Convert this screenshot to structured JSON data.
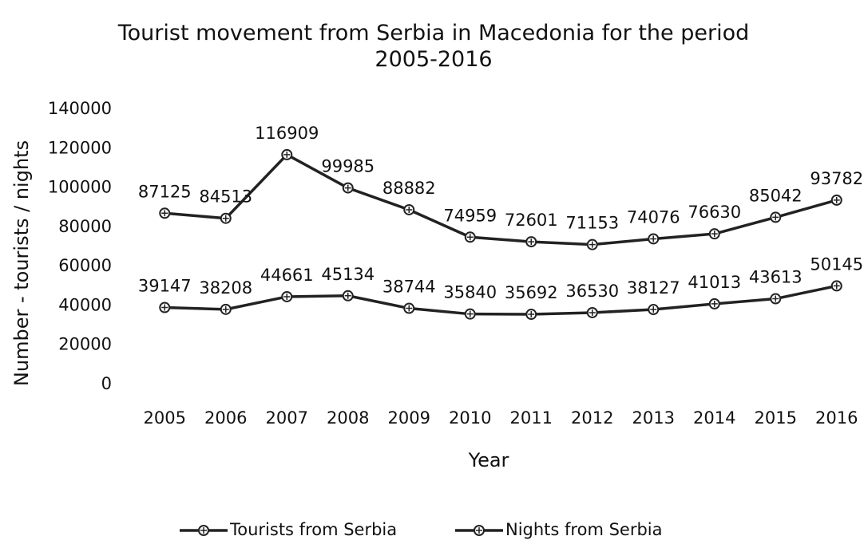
{
  "chart_data": {
    "type": "line",
    "title": "Tourist movement from Serbia in Macedonia for the period 2005-2016",
    "x_label": "Year",
    "y_label": "Number - tourists / nights",
    "categories": [
      "2005",
      "2006",
      "2007",
      "2008",
      "2009",
      "2010",
      "2011",
      "2012",
      "2013",
      "2014",
      "2015",
      "2016"
    ],
    "series": [
      {
        "name": "Tourists from Serbia",
        "color": "#222222",
        "values": [
          39147,
          38208,
          44661,
          45134,
          38744,
          35840,
          35692,
          36530,
          38127,
          41013,
          43613,
          50145
        ]
      },
      {
        "name": "Nights from Serbia",
        "color": "#222222",
        "values": [
          87125,
          84513,
          116909,
          99985,
          88882,
          74959,
          72601,
          71153,
          74076,
          76630,
          85042,
          93782
        ]
      }
    ],
    "ylim": [
      0,
      140000
    ],
    "yticks": [
      0,
      20000,
      40000,
      60000,
      80000,
      100000,
      120000,
      140000
    ],
    "grid": false,
    "legend": "bottom"
  }
}
